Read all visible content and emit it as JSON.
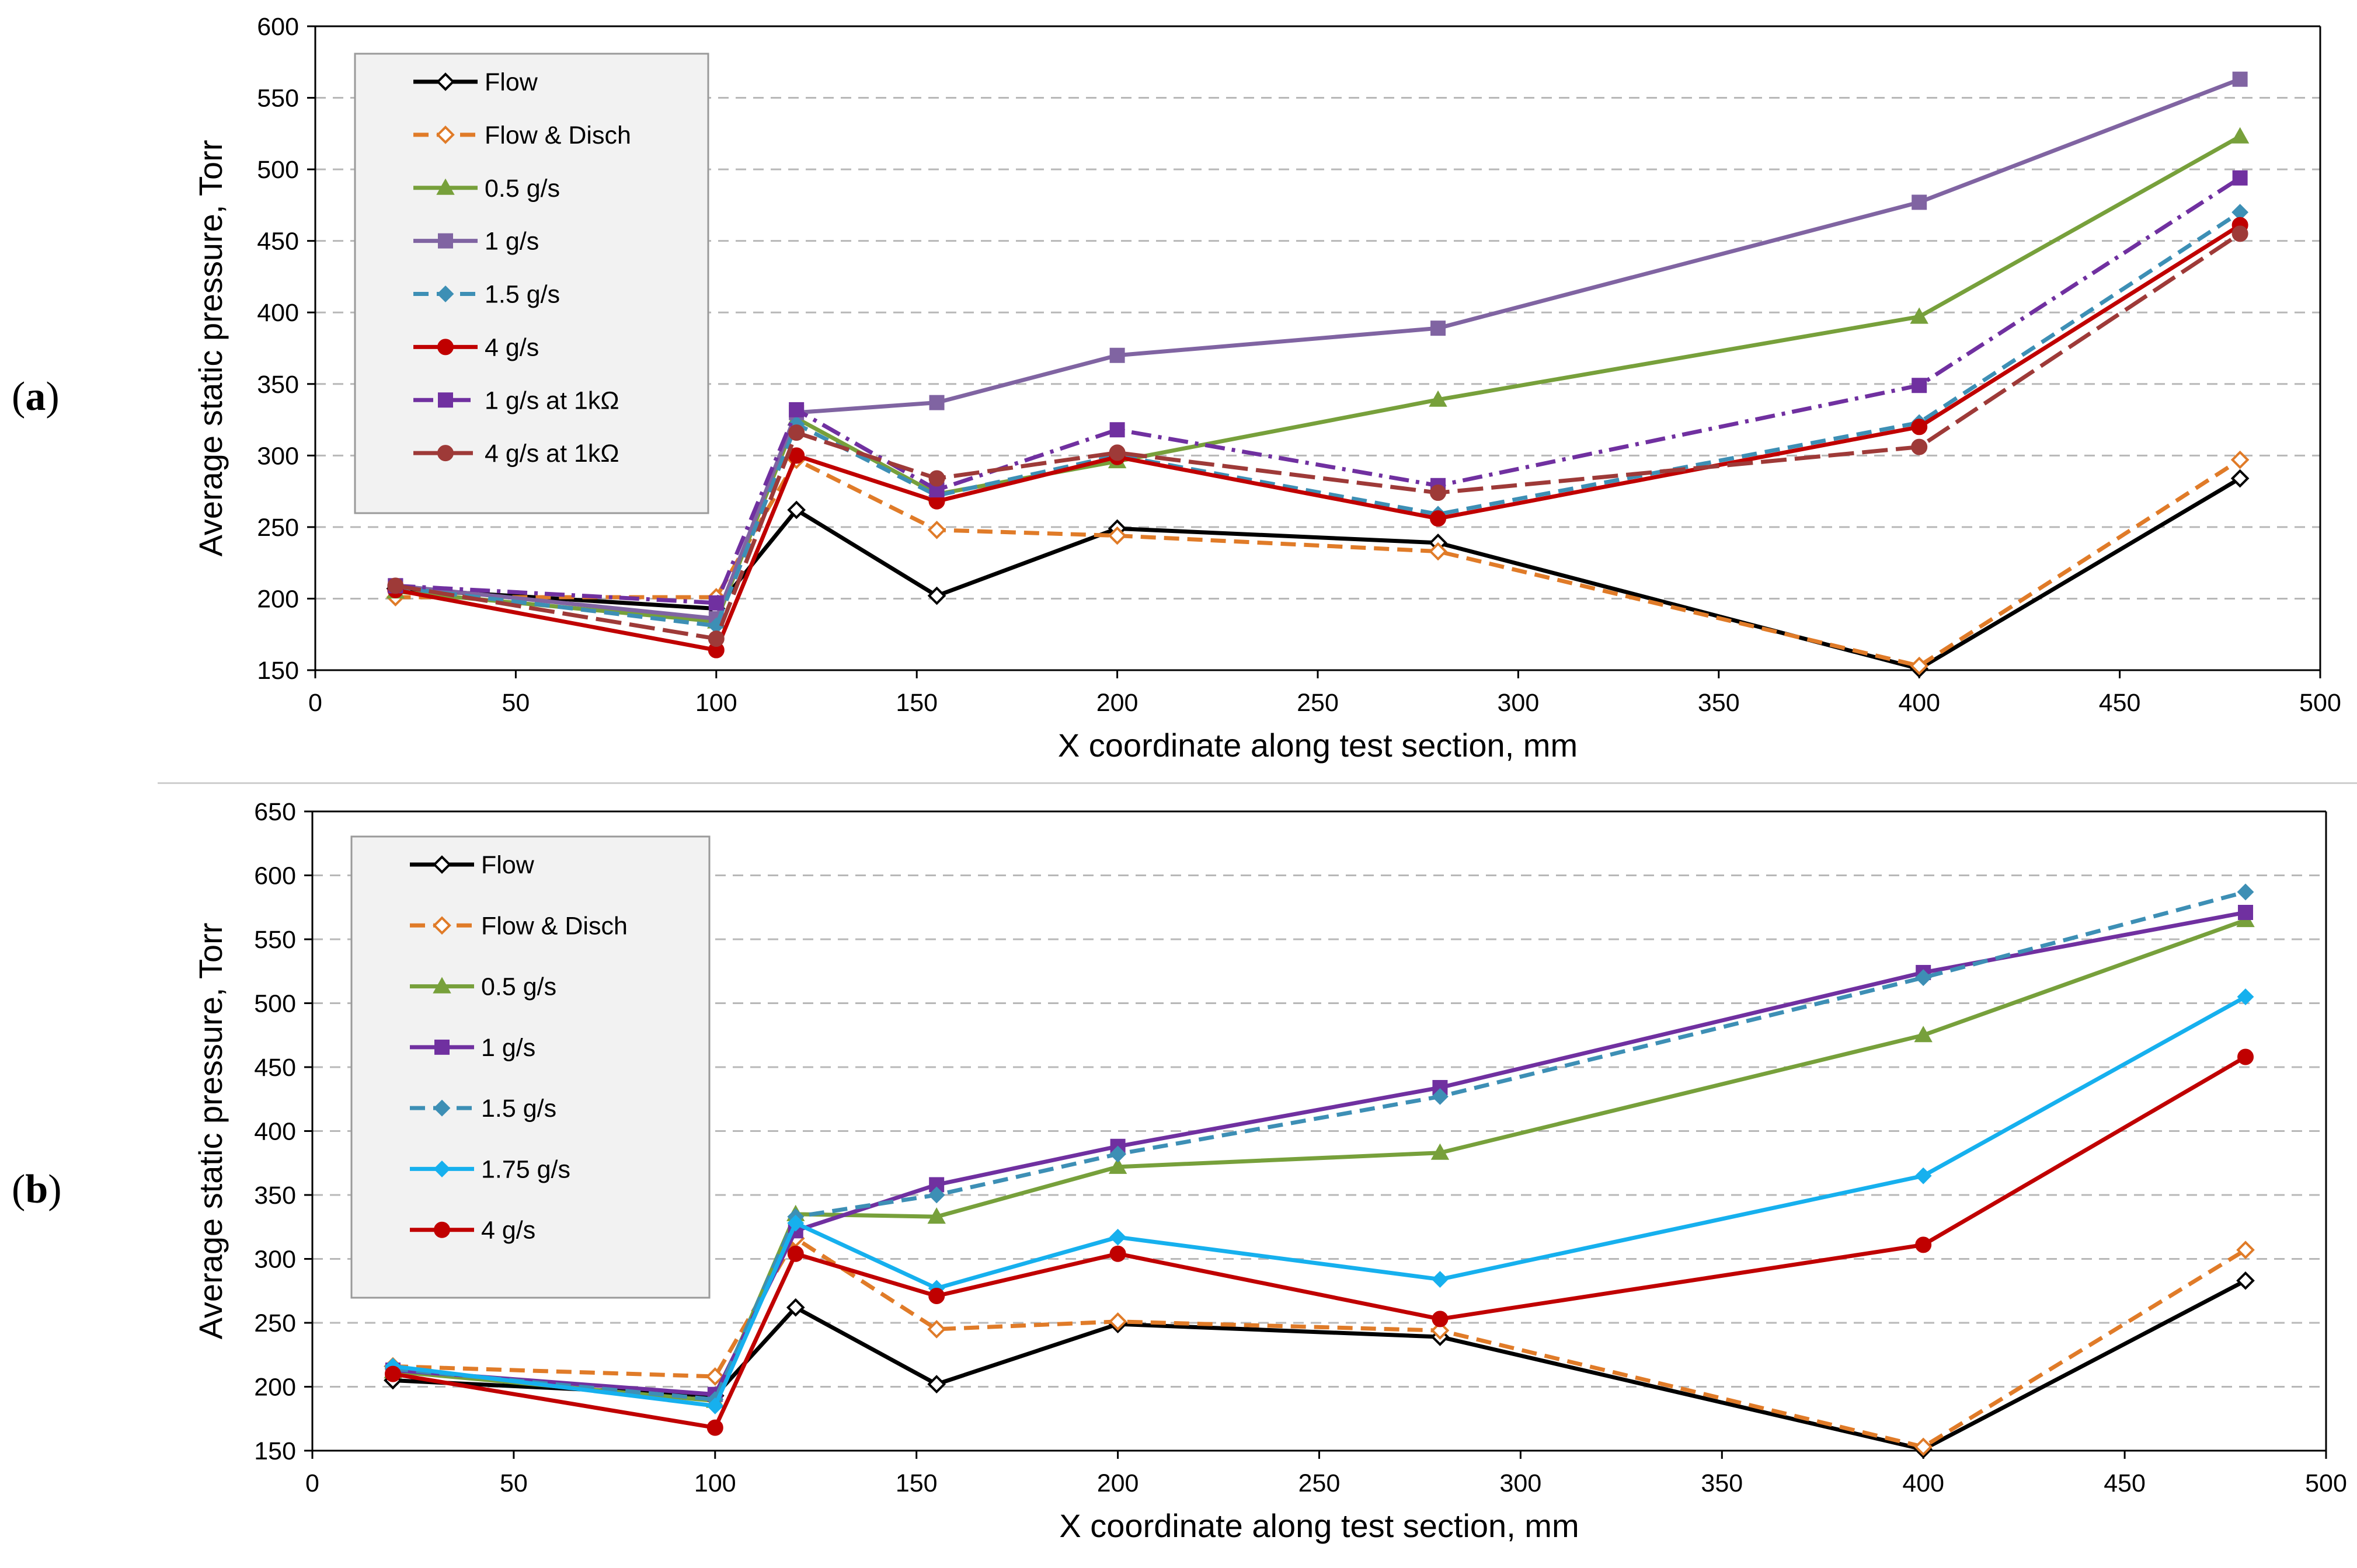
{
  "panels": [
    {
      "label": "a"
    },
    {
      "label": "b"
    }
  ],
  "chart_data": [
    {
      "type": "line",
      "panel": "a",
      "title": "",
      "xlabel": "X coordinate along test section, mm",
      "ylabel": "Average static pressure, Torr",
      "xlim": [
        0,
        500
      ],
      "ylim": [
        150,
        600
      ],
      "xticks": [
        0,
        50,
        100,
        150,
        200,
        250,
        300,
        350,
        400,
        450,
        500
      ],
      "yticks": [
        150,
        200,
        250,
        300,
        350,
        400,
        450,
        500,
        550,
        600
      ],
      "grid": "horizontal dashed",
      "legend_position": "top-left",
      "x": [
        20,
        100,
        120,
        155,
        200,
        280,
        400,
        480
      ],
      "series": [
        {
          "name": "Flow",
          "color": "#000000",
          "dash": "solid",
          "marker": "diamond-open",
          "values": [
            207,
            193,
            262,
            202,
            249,
            239,
            151,
            284
          ]
        },
        {
          "name": "Flow & Disch",
          "color": "#E07B28",
          "dash": "dash",
          "marker": "diamond-open",
          "values": [
            201,
            201,
            297,
            248,
            244,
            233,
            153,
            297
          ]
        },
        {
          "name": "0.5 g/s",
          "color": "#77A03B",
          "dash": "solid",
          "marker": "triangle",
          "values": [
            205,
            184,
            326,
            273,
            296,
            339,
            397,
            523
          ]
        },
        {
          "name": "1 g/s",
          "color": "#8064A2",
          "dash": "solid",
          "marker": "square",
          "values": [
            209,
            186,
            330,
            337,
            370,
            389,
            477,
            563
          ]
        },
        {
          "name": "1.5 g/s",
          "color": "#3D8FB5",
          "dash": "dash",
          "marker": "diamond",
          "values": [
            208,
            181,
            322,
            272,
            300,
            259,
            323,
            470
          ]
        },
        {
          "name": "4 g/s",
          "color": "#C00000",
          "dash": "solid",
          "marker": "circle",
          "values": [
            206,
            164,
            300,
            268,
            299,
            256,
            320,
            461
          ]
        },
        {
          "name": "1 g/s at 1kΩ",
          "color": "#7030A0",
          "dash": "dashdot",
          "marker": "square",
          "values": [
            209,
            197,
            332,
            276,
            318,
            279,
            349,
            494
          ]
        },
        {
          "name": "4 g/s at 1kΩ",
          "color": "#9E3A38",
          "dash": "longdash",
          "marker": "circle",
          "values": [
            209,
            172,
            316,
            284,
            302,
            274,
            306,
            455
          ]
        }
      ]
    },
    {
      "type": "line",
      "panel": "b",
      "title": "",
      "xlabel": "X coordinate along test section, mm",
      "ylabel": "Average static pressure, Torr",
      "xlim": [
        0,
        500
      ],
      "ylim": [
        150,
        650
      ],
      "xticks": [
        0,
        50,
        100,
        150,
        200,
        250,
        300,
        350,
        400,
        450,
        500
      ],
      "yticks": [
        150,
        200,
        250,
        300,
        350,
        400,
        450,
        500,
        550,
        600,
        650
      ],
      "grid": "horizontal dashed",
      "legend_position": "top-left",
      "x": [
        20,
        100,
        120,
        155,
        200,
        280,
        400,
        480
      ],
      "series": [
        {
          "name": "Flow",
          "color": "#000000",
          "dash": "solid",
          "marker": "diamond-open",
          "values": [
            205,
            193,
            262,
            202,
            249,
            239,
            151,
            283
          ]
        },
        {
          "name": "Flow & Disch",
          "color": "#E07B28",
          "dash": "dash",
          "marker": "diamond-open",
          "values": [
            216,
            208,
            316,
            245,
            251,
            244,
            153,
            307
          ]
        },
        {
          "name": "0.5 g/s",
          "color": "#77A03B",
          "dash": "solid",
          "marker": "triangle",
          "values": [
            212,
            189,
            335,
            333,
            372,
            383,
            475,
            565
          ]
        },
        {
          "name": "1 g/s",
          "color": "#7030A0",
          "dash": "solid",
          "marker": "square",
          "values": [
            213,
            194,
            322,
            358,
            388,
            434,
            524,
            571
          ]
        },
        {
          "name": "1.5 g/s",
          "color": "#3D8FB5",
          "dash": "dash",
          "marker": "diamond",
          "values": [
            214,
            190,
            333,
            350,
            382,
            427,
            520,
            587
          ]
        },
        {
          "name": "1.75 g/s",
          "color": "#16B0EE",
          "dash": "solid",
          "marker": "diamond",
          "values": [
            216,
            185,
            328,
            277,
            317,
            284,
            365,
            505
          ]
        },
        {
          "name": "4 g/s",
          "color": "#C00000",
          "dash": "solid",
          "marker": "circle",
          "values": [
            210,
            168,
            304,
            271,
            304,
            253,
            311,
            458
          ]
        }
      ]
    }
  ]
}
